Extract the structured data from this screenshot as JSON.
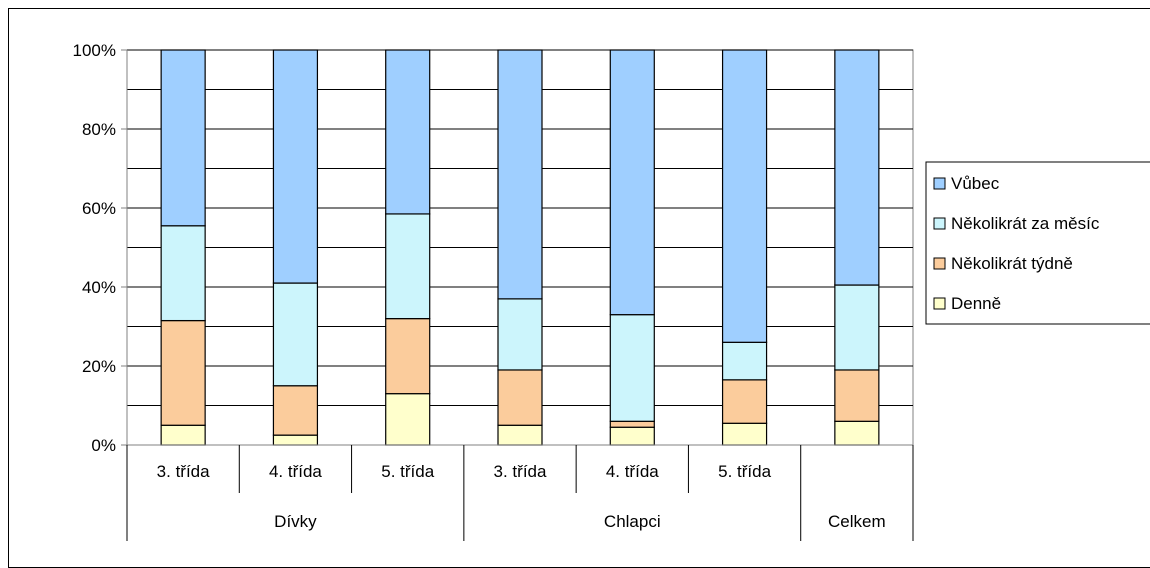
{
  "chart_data": {
    "type": "bar",
    "stacked": true,
    "percent": true,
    "title": "",
    "xlabel": "",
    "ylabel": "",
    "ylim": [
      0,
      100
    ],
    "yticks": [
      "0%",
      "20%",
      "40%",
      "60%",
      "80%",
      "100%"
    ],
    "grid": true,
    "legend_position": "right",
    "categories": [
      "3. třída",
      "4. třída",
      "5. třída",
      "3. třída",
      "4. třída",
      "5. třída",
      ""
    ],
    "groups": [
      {
        "label": "Dívky",
        "span": 3
      },
      {
        "label": "Chlapci",
        "span": 3
      },
      {
        "label": "Celkem",
        "span": 1
      }
    ],
    "series": [
      {
        "name": "Denně",
        "color": "#ffffcc",
        "values": [
          5,
          2.5,
          13,
          5,
          4.5,
          5.5,
          6
        ]
      },
      {
        "name": "Několikrát týdně",
        "color": "#fbcc9c",
        "values": [
          26.5,
          12.5,
          19,
          14,
          1.5,
          11,
          13
        ]
      },
      {
        "name": "Několikrát za měsíc",
        "color": "#ccf5fc",
        "values": [
          24,
          26,
          26.5,
          18,
          27,
          9.5,
          21.5
        ]
      },
      {
        "name": "Vůbec",
        "color": "#9fcfff",
        "values": [
          44.5,
          59,
          41.5,
          63,
          67,
          74,
          59.5
        ]
      }
    ]
  }
}
